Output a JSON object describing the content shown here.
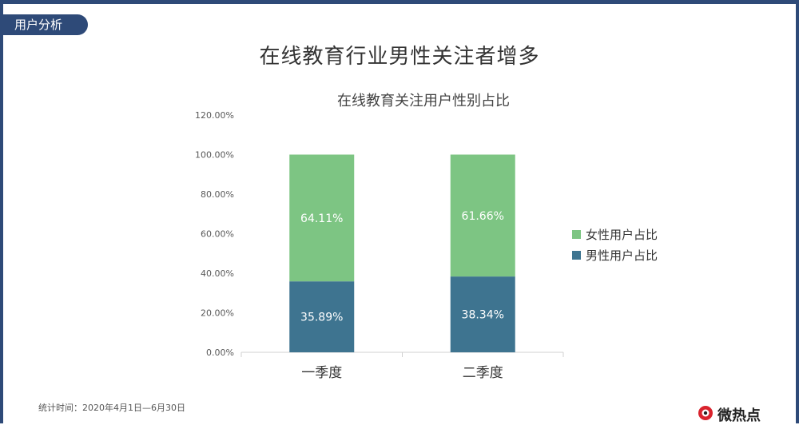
{
  "header": {
    "section_tab": "用户分析",
    "page_title": "在线教育行业男性关注者增多"
  },
  "chart_data": {
    "type": "bar",
    "stacked": true,
    "title": "在线教育关注用户性别占比",
    "categories": [
      "一季度",
      "二季度"
    ],
    "series": [
      {
        "name": "男性用户占比",
        "values": [
          35.89,
          38.34
        ],
        "labels": [
          "35.89%",
          "38.34%"
        ],
        "color": "#3e7490"
      },
      {
        "name": "女性用户占比",
        "values": [
          64.11,
          61.66
        ],
        "labels": [
          "64.11%",
          "61.66%"
        ],
        "color": "#7dc583"
      }
    ],
    "ylim": [
      0,
      120
    ],
    "yticks": [
      "0.00%",
      "20.00%",
      "40.00%",
      "60.00%",
      "80.00%",
      "100.00%",
      "120.00%"
    ],
    "legend_position": "right",
    "legend_order": [
      "女性用户占比",
      "男性用户占比"
    ],
    "grid": false
  },
  "footer": {
    "note": "统计时间：2020年4月1日—6月30日",
    "logo_text": "微热点"
  }
}
